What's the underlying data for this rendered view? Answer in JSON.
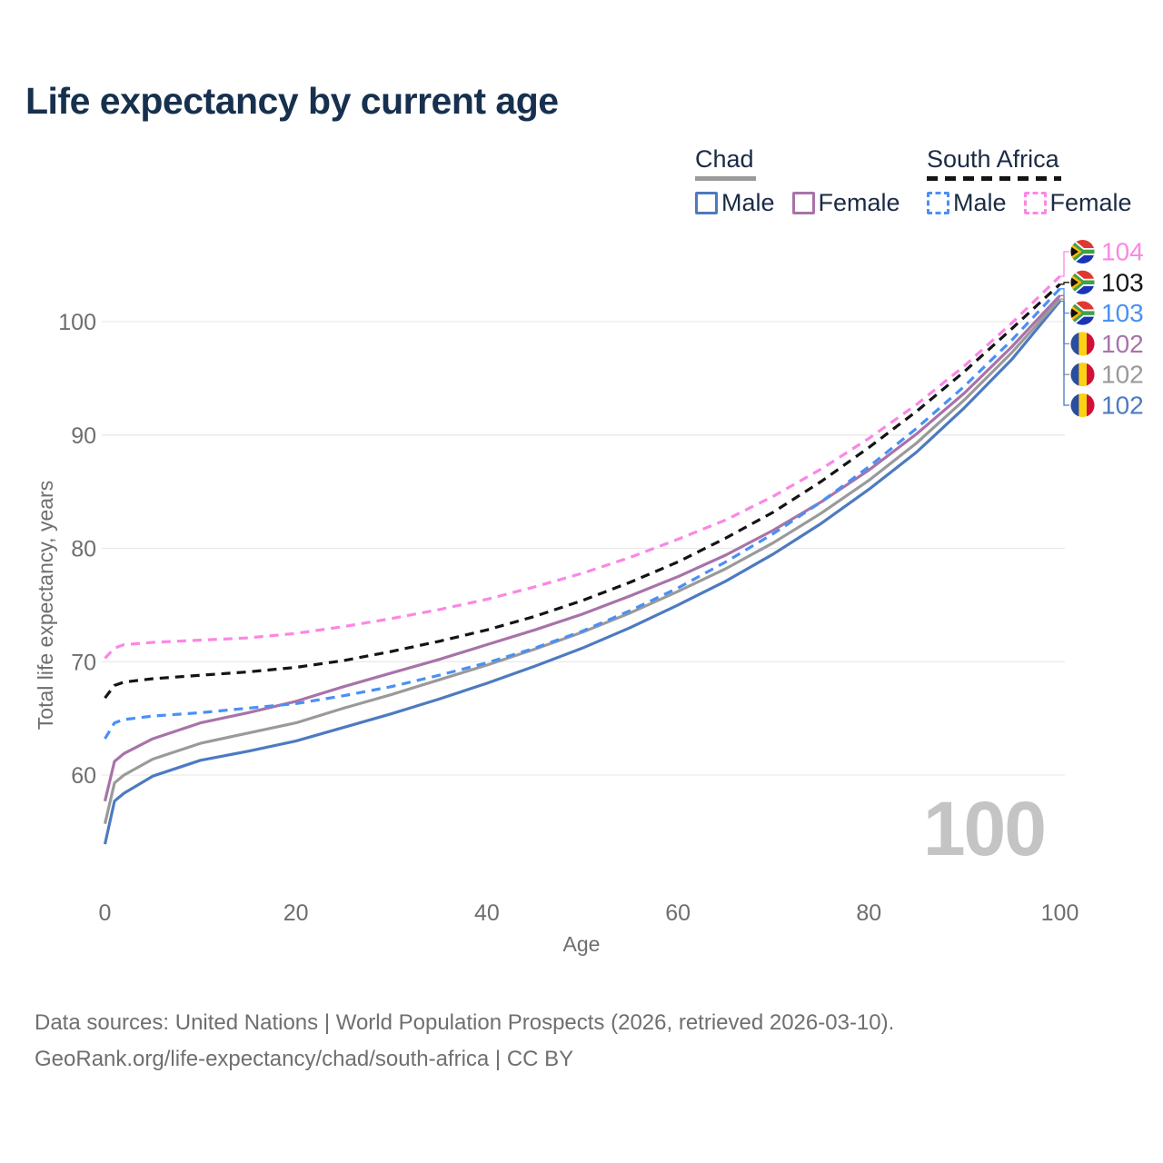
{
  "title": "Life expectancy by current age",
  "legend": {
    "groups": [
      {
        "country": "Chad",
        "line_style": "solid",
        "line_color": "#9a9a9a",
        "items": [
          {
            "label": "Male",
            "color": "#4d7ac1",
            "dashed": false
          },
          {
            "label": "Female",
            "color": "#a873a8",
            "dashed": false
          }
        ]
      },
      {
        "country": "South Africa",
        "line_style": "dashed",
        "line_color": "#141414",
        "items": [
          {
            "label": "Male",
            "color": "#4a90f4",
            "dashed": true
          },
          {
            "label": "Female",
            "color": "#fb87e4",
            "dashed": true
          }
        ]
      }
    ]
  },
  "watermark": "100",
  "footer": {
    "line1": "Data sources: United Nations | World Population Prospects (2026, retrieved 2026-03-10).",
    "line2": "GeoRank.org/life-expectancy/chad/south-africa | CC BY"
  },
  "chart_data": {
    "type": "line",
    "title": "Life expectancy by current age",
    "xlabel": "Age",
    "ylabel": "Total life expectancy, years",
    "xlim": [
      0,
      100
    ],
    "ylim": [
      52,
      106
    ],
    "x_ticks": [
      0,
      20,
      40,
      60,
      80,
      100
    ],
    "y_ticks": [
      60,
      70,
      80,
      90,
      100
    ],
    "grid": "horizontal",
    "legend_note": "solid = Chad, dashed = South Africa; gray/black = national average",
    "series": [
      {
        "name": "South Africa Female",
        "country": "South Africa",
        "sex": "Female",
        "color": "#fb87e4",
        "dash": true,
        "end_label": "104",
        "flag": "za",
        "points": [
          [
            0,
            70.3
          ],
          [
            1,
            71.2
          ],
          [
            2,
            71.5
          ],
          [
            5,
            71.7
          ],
          [
            10,
            71.9
          ],
          [
            15,
            72.1
          ],
          [
            20,
            72.5
          ],
          [
            25,
            73.1
          ],
          [
            30,
            73.8
          ],
          [
            35,
            74.6
          ],
          [
            40,
            75.5
          ],
          [
            45,
            76.6
          ],
          [
            50,
            77.8
          ],
          [
            55,
            79.2
          ],
          [
            60,
            80.8
          ],
          [
            65,
            82.5
          ],
          [
            70,
            84.6
          ],
          [
            75,
            87.0
          ],
          [
            80,
            89.7
          ],
          [
            85,
            92.7
          ],
          [
            90,
            96.1
          ],
          [
            95,
            99.9
          ],
          [
            100,
            104.0
          ]
        ]
      },
      {
        "name": "South Africa Total",
        "country": "South Africa",
        "sex": "Both",
        "color": "#141414",
        "dash": true,
        "end_label": "103",
        "flag": "za",
        "points": [
          [
            0,
            66.8
          ],
          [
            1,
            67.9
          ],
          [
            2,
            68.2
          ],
          [
            5,
            68.5
          ],
          [
            10,
            68.8
          ],
          [
            15,
            69.1
          ],
          [
            20,
            69.5
          ],
          [
            25,
            70.1
          ],
          [
            30,
            70.9
          ],
          [
            35,
            71.8
          ],
          [
            40,
            72.8
          ],
          [
            45,
            74.0
          ],
          [
            50,
            75.4
          ],
          [
            55,
            77.0
          ],
          [
            60,
            78.8
          ],
          [
            65,
            80.9
          ],
          [
            70,
            83.2
          ],
          [
            75,
            85.9
          ],
          [
            80,
            88.9
          ],
          [
            85,
            92.1
          ],
          [
            90,
            95.6
          ],
          [
            95,
            99.4
          ],
          [
            100,
            103.3
          ]
        ]
      },
      {
        "name": "South Africa Male",
        "country": "South Africa",
        "sex": "Male",
        "color": "#4a90f4",
        "dash": true,
        "end_label": "103",
        "flag": "za",
        "points": [
          [
            0,
            63.2
          ],
          [
            1,
            64.6
          ],
          [
            2,
            64.9
          ],
          [
            5,
            65.2
          ],
          [
            10,
            65.5
          ],
          [
            15,
            65.9
          ],
          [
            20,
            66.3
          ],
          [
            25,
            67.0
          ],
          [
            30,
            67.8
          ],
          [
            35,
            68.8
          ],
          [
            40,
            69.9
          ],
          [
            45,
            71.2
          ],
          [
            50,
            72.7
          ],
          [
            55,
            74.5
          ],
          [
            60,
            76.5
          ],
          [
            65,
            78.8
          ],
          [
            70,
            81.3
          ],
          [
            75,
            84.1
          ],
          [
            80,
            87.2
          ],
          [
            85,
            90.6
          ],
          [
            90,
            94.3
          ],
          [
            95,
            98.4
          ],
          [
            100,
            102.9
          ]
        ]
      },
      {
        "name": "Chad Female",
        "country": "Chad",
        "sex": "Female",
        "color": "#a873a8",
        "dash": false,
        "end_label": "102",
        "flag": "td",
        "points": [
          [
            0,
            57.7
          ],
          [
            1,
            61.2
          ],
          [
            2,
            61.9
          ],
          [
            5,
            63.2
          ],
          [
            10,
            64.6
          ],
          [
            15,
            65.5
          ],
          [
            20,
            66.5
          ],
          [
            25,
            67.8
          ],
          [
            30,
            69.0
          ],
          [
            35,
            70.2
          ],
          [
            40,
            71.5
          ],
          [
            45,
            72.8
          ],
          [
            50,
            74.2
          ],
          [
            55,
            75.8
          ],
          [
            60,
            77.5
          ],
          [
            65,
            79.4
          ],
          [
            70,
            81.6
          ],
          [
            75,
            84.1
          ],
          [
            80,
            86.9
          ],
          [
            85,
            90.1
          ],
          [
            90,
            93.7
          ],
          [
            95,
            97.8
          ],
          [
            100,
            102.3
          ]
        ]
      },
      {
        "name": "Chad Total",
        "country": "Chad",
        "sex": "Both",
        "color": "#9a9a9a",
        "dash": false,
        "end_label": "102",
        "flag": "td",
        "points": [
          [
            0,
            55.7
          ],
          [
            1,
            59.3
          ],
          [
            2,
            60.0
          ],
          [
            5,
            61.4
          ],
          [
            10,
            62.8
          ],
          [
            15,
            63.7
          ],
          [
            20,
            64.6
          ],
          [
            25,
            65.9
          ],
          [
            30,
            67.1
          ],
          [
            35,
            68.4
          ],
          [
            40,
            69.7
          ],
          [
            45,
            71.1
          ],
          [
            50,
            72.6
          ],
          [
            55,
            74.3
          ],
          [
            60,
            76.2
          ],
          [
            65,
            78.2
          ],
          [
            70,
            80.5
          ],
          [
            75,
            83.1
          ],
          [
            80,
            86.0
          ],
          [
            85,
            89.3
          ],
          [
            90,
            93.1
          ],
          [
            95,
            97.3
          ],
          [
            100,
            102.0
          ]
        ]
      },
      {
        "name": "Chad Male",
        "country": "Chad",
        "sex": "Male",
        "color": "#4d7ac1",
        "dash": false,
        "end_label": "102",
        "flag": "td",
        "points": [
          [
            0,
            53.9
          ],
          [
            1,
            57.7
          ],
          [
            2,
            58.4
          ],
          [
            5,
            59.9
          ],
          [
            10,
            61.3
          ],
          [
            15,
            62.1
          ],
          [
            20,
            63.0
          ],
          [
            25,
            64.2
          ],
          [
            30,
            65.4
          ],
          [
            35,
            66.7
          ],
          [
            40,
            68.1
          ],
          [
            45,
            69.6
          ],
          [
            50,
            71.2
          ],
          [
            55,
            73.0
          ],
          [
            60,
            75.0
          ],
          [
            65,
            77.1
          ],
          [
            70,
            79.5
          ],
          [
            75,
            82.2
          ],
          [
            80,
            85.2
          ],
          [
            85,
            88.5
          ],
          [
            90,
            92.4
          ],
          [
            95,
            96.7
          ],
          [
            100,
            101.8
          ]
        ]
      }
    ]
  }
}
